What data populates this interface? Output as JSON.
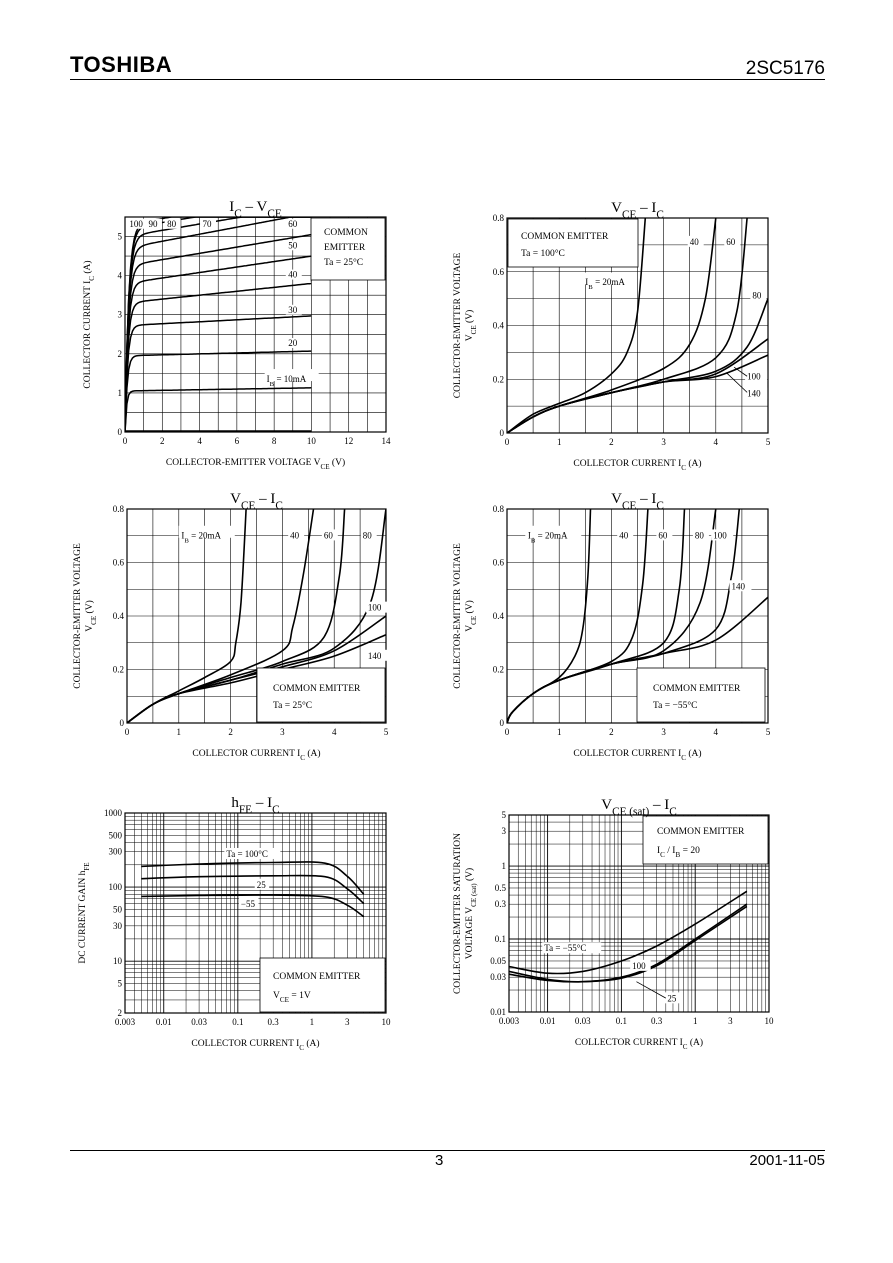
{
  "header": {
    "brand": "TOSHIBA",
    "part_number": "2SC5176"
  },
  "footer": {
    "page": "3",
    "date": "2001-11-05"
  },
  "chart_data": [
    {
      "type": "line",
      "title_main": "I",
      "title_sub": "C",
      "title_mid": " – V",
      "title_sub2": "CE",
      "xlabel": "COLLECTOR-EMITTER VOLTAGE   V",
      "xlabel_sub": "CE",
      "xlabel_unit": "   (V)",
      "ylabel": "COLLECTOR CURRENT   I",
      "ylabel_sub": "C",
      "ylabel_unit": "   (A)",
      "xlim": [
        0,
        14
      ],
      "ylim": [
        0,
        5.5
      ],
      "xticks": [
        "0",
        "2",
        "4",
        "6",
        "8",
        "10",
        "12",
        "14"
      ],
      "yticks": [
        "0",
        "1",
        "2",
        "3",
        "4",
        "5"
      ],
      "condition": [
        "COMMON",
        "EMITTER",
        "Ta = 25°C"
      ],
      "ib_unit_label": "I",
      "ib_unit_sub": "B",
      "ib_unit_tail": " = 10mA",
      "series": [
        {
          "name": "10",
          "sat": 1.05,
          "slope": 0.008
        },
        {
          "name": "20",
          "sat": 1.95,
          "slope": 0.012
        },
        {
          "name": "30",
          "sat": 2.72,
          "slope": 0.025
        },
        {
          "name": "40",
          "sat": 3.3,
          "slope": 0.05
        },
        {
          "name": "50",
          "sat": 3.8,
          "slope": 0.07
        },
        {
          "name": "60",
          "sat": 4.25,
          "slope": 0.08
        },
        {
          "name": "70",
          "sat": 4.7,
          "slope": 0.09
        },
        {
          "name": "80",
          "sat": 5.0,
          "slope": 0.08
        },
        {
          "name": "90",
          "sat": 5.2,
          "slope": 0.08
        },
        {
          "name": "100",
          "sat": 5.3,
          "slope": 0.08
        }
      ],
      "curve_labels": [
        "100",
        "90",
        "80",
        "70",
        "60",
        "50",
        "40",
        "30",
        "20"
      ]
    },
    {
      "type": "line",
      "title_main": "V",
      "title_sub": "CE",
      "title_mid": " – I",
      "title_sub2": "C",
      "xlabel": "COLLECTOR CURRENT   I",
      "xlabel_sub": "C",
      "xlabel_unit": "   (A)",
      "ylabel": "COLLECTOR-EMITTER VOLTAGE",
      "ylabel2": "V",
      "ylabel2_sub": "CE",
      "ylabel2_unit": "   (V)",
      "xlim": [
        0,
        5
      ],
      "ylim": [
        0,
        0.8
      ],
      "xticks": [
        "0",
        "1",
        "2",
        "3",
        "4",
        "5"
      ],
      "yticks": [
        "0",
        "0.2",
        "0.4",
        "0.6",
        "0.8"
      ],
      "condition": [
        "COMMON EMITTER",
        "Ta = 100°C"
      ],
      "ib_label": "I",
      "ib_sub": "B",
      "ib_tail": " = 20mA",
      "series": [
        {
          "name": "20",
          "x": [
            0,
            0.5,
            1,
            1.5,
            2,
            2.3,
            2.5,
            2.65
          ],
          "y": [
            0,
            0.07,
            0.11,
            0.15,
            0.22,
            0.3,
            0.45,
            0.8
          ]
        },
        {
          "name": "40",
          "x": [
            0,
            0.5,
            1,
            2,
            3,
            3.5,
            3.8,
            4.0
          ],
          "y": [
            0,
            0.06,
            0.1,
            0.16,
            0.24,
            0.33,
            0.5,
            0.8
          ]
        },
        {
          "name": "60",
          "x": [
            0,
            0.5,
            1,
            2,
            3,
            4,
            4.4,
            4.6
          ],
          "y": [
            0,
            0.06,
            0.1,
            0.15,
            0.2,
            0.28,
            0.45,
            0.8
          ]
        },
        {
          "name": "80",
          "x": [
            0,
            0.5,
            1,
            2,
            3,
            4,
            4.6,
            5.0
          ],
          "y": [
            0,
            0.06,
            0.1,
            0.15,
            0.19,
            0.23,
            0.32,
            0.5
          ]
        },
        {
          "name": "100",
          "x": [
            0,
            0.5,
            1,
            2,
            3,
            4,
            5
          ],
          "y": [
            0,
            0.06,
            0.1,
            0.15,
            0.19,
            0.22,
            0.35
          ]
        },
        {
          "name": "140",
          "x": [
            0,
            0.5,
            1,
            2,
            3,
            4,
            5
          ],
          "y": [
            0,
            0.06,
            0.1,
            0.15,
            0.19,
            0.21,
            0.29
          ]
        }
      ],
      "curve_labels": [
        "40",
        "60",
        "80",
        "100",
        "140"
      ]
    },
    {
      "type": "line",
      "title_main": "V",
      "title_sub": "CE",
      "title_mid": " – I",
      "title_sub2": "C",
      "xlabel": "COLLECTOR CURRENT   I",
      "xlabel_sub": "C",
      "xlabel_unit": "   (A)",
      "ylabel": "COLLECTOR-EMITTER VOLTAGE",
      "ylabel2": "V",
      "ylabel2_sub": "CE",
      "ylabel2_unit": "   (V)",
      "xlim": [
        0,
        5
      ],
      "ylim": [
        0,
        0.8
      ],
      "xticks": [
        "0",
        "1",
        "2",
        "3",
        "4",
        "5"
      ],
      "yticks": [
        "0",
        "0.2",
        "0.4",
        "0.6",
        "0.8"
      ],
      "condition": [
        "COMMON EMITTER",
        "Ta = 25°C"
      ],
      "ib_label": "I",
      "ib_sub": "B",
      "ib_tail": " = 20mA",
      "series": [
        {
          "name": "20",
          "x": [
            0,
            0.5,
            1,
            1.5,
            2,
            2.1,
            2.2,
            2.3
          ],
          "y": [
            0,
            0.07,
            0.12,
            0.17,
            0.23,
            0.3,
            0.45,
            0.8
          ]
        },
        {
          "name": "40",
          "x": [
            0,
            0.5,
            1,
            2,
            3,
            3.2,
            3.4,
            3.6
          ],
          "y": [
            0,
            0.07,
            0.11,
            0.18,
            0.27,
            0.36,
            0.55,
            0.8
          ]
        },
        {
          "name": "60",
          "x": [
            0,
            0.5,
            1,
            2,
            3,
            3.8,
            4.1,
            4.2
          ],
          "y": [
            0,
            0.07,
            0.11,
            0.17,
            0.23,
            0.32,
            0.55,
            0.8
          ]
        },
        {
          "name": "80",
          "x": [
            0,
            0.5,
            1,
            2,
            3,
            4,
            4.7,
            5.0
          ],
          "y": [
            0,
            0.07,
            0.11,
            0.16,
            0.22,
            0.28,
            0.45,
            0.8
          ]
        },
        {
          "name": "100",
          "x": [
            0,
            0.5,
            1,
            2,
            3,
            4,
            5
          ],
          "y": [
            0,
            0.07,
            0.11,
            0.16,
            0.21,
            0.27,
            0.4
          ]
        },
        {
          "name": "140",
          "x": [
            0,
            0.5,
            1,
            2,
            3,
            4,
            5
          ],
          "y": [
            0,
            0.07,
            0.11,
            0.15,
            0.2,
            0.25,
            0.33
          ]
        }
      ],
      "curve_labels": [
        "40",
        "60",
        "80",
        "100",
        "140"
      ]
    },
    {
      "type": "line",
      "title_main": "V",
      "title_sub": "CE",
      "title_mid": " – I",
      "title_sub2": "C",
      "xlabel": "COLLECTOR CURRENT   I",
      "xlabel_sub": "C",
      "xlabel_unit": "   (A)",
      "ylabel": "COLLECTOR-EMITTER VOLTAGE",
      "ylabel2": "V",
      "ylabel2_sub": "CE",
      "ylabel2_unit": "   (V)",
      "xlim": [
        0,
        5
      ],
      "ylim": [
        0,
        0.8
      ],
      "xticks": [
        "0",
        "1",
        "2",
        "3",
        "4",
        "5"
      ],
      "yticks": [
        "0",
        "0.2",
        "0.4",
        "0.6",
        "0.8"
      ],
      "condition": [
        "COMMON EMITTER",
        "Ta = −55°C"
      ],
      "ib_label": "I",
      "ib_sub": "B",
      "ib_tail": " = 20mA",
      "series": [
        {
          "name": "20",
          "x": [
            0,
            0.1,
            0.5,
            1,
            1.3,
            1.45,
            1.55,
            1.6
          ],
          "y": [
            0,
            0.04,
            0.11,
            0.17,
            0.25,
            0.35,
            0.55,
            0.8
          ]
        },
        {
          "name": "40",
          "x": [
            0,
            0.1,
            0.5,
            1,
            2,
            2.4,
            2.6,
            2.7
          ],
          "y": [
            0,
            0.04,
            0.11,
            0.16,
            0.23,
            0.32,
            0.52,
            0.8
          ]
        },
        {
          "name": "60",
          "x": [
            0,
            0.1,
            0.5,
            1,
            2,
            3,
            3.3,
            3.4
          ],
          "y": [
            0,
            0.04,
            0.11,
            0.16,
            0.22,
            0.3,
            0.5,
            0.8
          ]
        },
        {
          "name": "80",
          "x": [
            0,
            0.1,
            0.5,
            1,
            2,
            3,
            3.7,
            4.0
          ],
          "y": [
            0,
            0.04,
            0.11,
            0.16,
            0.22,
            0.27,
            0.45,
            0.8
          ]
        },
        {
          "name": "100",
          "x": [
            0,
            0.1,
            0.5,
            1,
            2,
            3,
            4,
            4.3,
            4.45
          ],
          "y": [
            0,
            0.04,
            0.11,
            0.16,
            0.22,
            0.26,
            0.35,
            0.55,
            0.8
          ]
        },
        {
          "name": "140",
          "x": [
            0,
            0.1,
            0.5,
            1,
            2,
            3,
            4,
            5
          ],
          "y": [
            0,
            0.04,
            0.11,
            0.16,
            0.22,
            0.26,
            0.31,
            0.47
          ]
        }
      ],
      "curve_labels": [
        "40",
        "60",
        "80",
        "100",
        "140"
      ]
    },
    {
      "type": "line",
      "scale": "log-log",
      "title_main": "h",
      "title_sub": "FE",
      "title_mid": " – I",
      "title_sub2": "C",
      "xlabel": "COLLECTOR CURRENT   I",
      "xlabel_sub": "C",
      "xlabel_unit": "   (A)",
      "ylabel": "DC CURRENT GAIN   h",
      "ylabel_sub": "FE",
      "xlim": [
        0.003,
        10
      ],
      "ylim": [
        2,
        1000
      ],
      "xticks": [
        "0.003",
        "0.01",
        "0.03",
        "0.1",
        "0.3",
        "1",
        "3",
        "10"
      ],
      "yticks": [
        "2",
        "5",
        "10",
        "30",
        "50",
        "100",
        "300",
        "500",
        "1000"
      ],
      "condition": [
        "COMMON EMITTER",
        "V",
        "CE",
        " = 1V"
      ],
      "series": [
        {
          "name": "Ta = 100°C",
          "x": [
            0.005,
            0.03,
            0.3,
            1.5,
            3,
            5
          ],
          "y": [
            190,
            205,
            215,
            210,
            140,
            80
          ]
        },
        {
          "name": "25",
          "x": [
            0.005,
            0.03,
            0.3,
            1.5,
            3,
            5
          ],
          "y": [
            130,
            138,
            142,
            138,
            95,
            60
          ]
        },
        {
          "name": "−55",
          "x": [
            0.005,
            0.03,
            0.3,
            1.5,
            3,
            5
          ],
          "y": [
            75,
            77,
            78,
            74,
            57,
            40
          ]
        }
      ],
      "curve_labels": [
        "Ta = 100°C",
        "25",
        "−55"
      ]
    },
    {
      "type": "line",
      "scale": "log-log",
      "title_main": "V",
      "title_sub": "CE (sat)",
      "title_mid": " – I",
      "title_sub2": "C",
      "xlabel": "COLLECTOR CURRENT   I",
      "xlabel_sub": "C",
      "xlabel_unit": "   (A)",
      "ylabel": "COLLECTOR-EMITTER SATURATION",
      "ylabel2": "VOLTAGE   V",
      "ylabel2_sub": "CE (sat)",
      "ylabel2_unit": "   (V)",
      "xlim": [
        0.003,
        10
      ],
      "ylim": [
        0.01,
        5
      ],
      "xticks": [
        "0.003",
        "0.01",
        "0.03",
        "0.1",
        "0.3",
        "1",
        "3",
        "10"
      ],
      "yticks": [
        "0.01",
        "0.03",
        "0.05",
        "0.1",
        "0.3",
        "0.5",
        "1",
        "3",
        "5"
      ],
      "condition": [
        "COMMON EMITTER",
        "I",
        "C",
        " / I",
        "B",
        " = 20"
      ],
      "series": [
        {
          "name": "Ta = −55°C",
          "x": [
            0.003,
            0.01,
            0.03,
            0.1,
            0.3,
            1,
            5
          ],
          "y": [
            0.042,
            0.034,
            0.036,
            0.05,
            0.08,
            0.16,
            0.45
          ]
        },
        {
          "name": "100",
          "x": [
            0.003,
            0.01,
            0.03,
            0.1,
            0.3,
            1,
            5
          ],
          "y": [
            0.036,
            0.028,
            0.026,
            0.03,
            0.045,
            0.1,
            0.3
          ]
        },
        {
          "name": "25",
          "x": [
            0.003,
            0.01,
            0.03,
            0.1,
            0.3,
            1,
            5
          ],
          "y": [
            0.033,
            0.027,
            0.026,
            0.029,
            0.043,
            0.095,
            0.28
          ]
        }
      ],
      "curve_labels": [
        "Ta = −55°C",
        "100",
        "25"
      ]
    }
  ]
}
